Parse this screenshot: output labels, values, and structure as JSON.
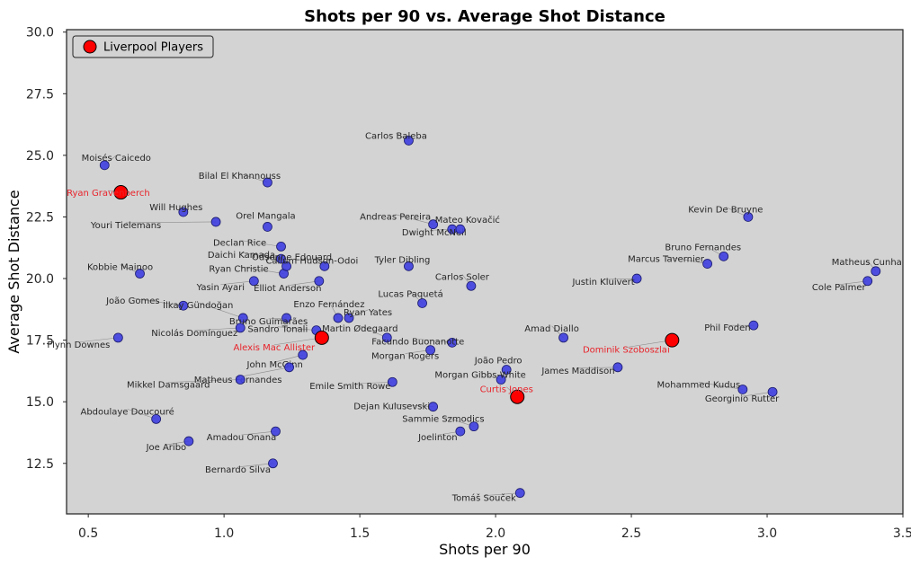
{
  "chart_data": {
    "type": "scatter",
    "title": "Shots per 90 vs. Average Shot Distance",
    "xlabel": "Shots per 90",
    "ylabel": "Average Shot Distance",
    "xlim": [
      0.42,
      3.5
    ],
    "ylim": [
      10.45,
      30.1
    ],
    "x_ticks": [
      "0.5",
      "1.0",
      "1.5",
      "2.0",
      "2.5",
      "3.0",
      "3.5"
    ],
    "y_ticks": [
      "12.5",
      "15.0",
      "17.5",
      "20.0",
      "22.5",
      "25.0",
      "27.5",
      "30.0"
    ],
    "grid": false,
    "legend": {
      "location": "top-left",
      "entries": [
        "Liverpool Players"
      ]
    },
    "colors": {
      "plot_bg": "#d3d3d3",
      "point": "#3a3ae0",
      "liverpool": "#ff0000",
      "liverpool_label": "#e8232a",
      "leader": "#8c8c8c"
    },
    "series": [
      {
        "name": "Other players",
        "points": [
          {
            "x": 0.56,
            "y": 29.2,
            "label": ""
          },
          {
            "x": 0.56,
            "y": 24.6,
            "label": "Moisés Caicedo"
          },
          {
            "x": 0.85,
            "y": 22.7,
            "label": "Will Hughes"
          },
          {
            "x": 0.97,
            "y": 22.3,
            "label": "Youri Tielemans"
          },
          {
            "x": 1.16,
            "y": 23.9,
            "label": "Bilal El Khannouss"
          },
          {
            "x": 1.16,
            "y": 22.1,
            "label": "Orel Mangala"
          },
          {
            "x": 1.21,
            "y": 21.3,
            "label": "Declan Rice"
          },
          {
            "x": 1.21,
            "y": 20.8,
            "label": "Daichi Kamada"
          },
          {
            "x": 1.22,
            "y": 20.2,
            "label": "Ryan Christie"
          },
          {
            "x": 1.23,
            "y": 20.5,
            "label": "Odsonne Edouard"
          },
          {
            "x": 1.37,
            "y": 20.5,
            "label": "Callum Hudson-Odoi"
          },
          {
            "x": 1.11,
            "y": 19.9,
            "label": "Yasin Ayari"
          },
          {
            "x": 1.35,
            "y": 19.9,
            "label": "Elliot Anderson"
          },
          {
            "x": 0.69,
            "y": 20.2,
            "label": "Kobbie Mainoo"
          },
          {
            "x": 0.85,
            "y": 18.9,
            "label": "João Gomes"
          },
          {
            "x": 1.07,
            "y": 18.4,
            "label": "İlkay Gündoğan"
          },
          {
            "x": 1.23,
            "y": 18.4,
            "label": "Bruno Guimarães"
          },
          {
            "x": 1.06,
            "y": 18.0,
            "label": "Nicolás Domínguez"
          },
          {
            "x": 1.34,
            "y": 17.9,
            "label": "Sandro Tonali"
          },
          {
            "x": 0.61,
            "y": 17.6,
            "label": "Flynn Downes"
          },
          {
            "x": 1.42,
            "y": 18.4,
            "label": "Enzo Fernández"
          },
          {
            "x": 1.46,
            "y": 18.4,
            "label": "Ryan Yates"
          },
          {
            "x": 1.6,
            "y": 17.6,
            "label": "Martin Ødegaard"
          },
          {
            "x": 1.29,
            "y": 16.9,
            "label": "John McGinn"
          },
          {
            "x": 1.24,
            "y": 16.4,
            "label": "Matheus Fernandes"
          },
          {
            "x": 1.06,
            "y": 15.9,
            "label": "Mikkel Damsgaard"
          },
          {
            "x": 1.68,
            "y": 25.6,
            "label": "Carlos Baleba"
          },
          {
            "x": 1.77,
            "y": 22.2,
            "label": "Andreas Pereira"
          },
          {
            "x": 1.84,
            "y": 22.0,
            "label": "Dwight McNeil"
          },
          {
            "x": 1.87,
            "y": 22.0,
            "label": "Mateo Kovačić"
          },
          {
            "x": 1.68,
            "y": 20.5,
            "label": "Tyler Dibling"
          },
          {
            "x": 1.91,
            "y": 19.7,
            "label": "Carlos Soler"
          },
          {
            "x": 1.73,
            "y": 19.0,
            "label": "Lucas Paquetá"
          },
          {
            "x": 1.84,
            "y": 17.4,
            "label": "Facundo Buonanotte"
          },
          {
            "x": 1.76,
            "y": 17.1,
            "label": "Morgan Rogers"
          },
          {
            "x": 2.04,
            "y": 16.3,
            "label": "João Pedro"
          },
          {
            "x": 2.02,
            "y": 15.9,
            "label": "Morgan Gibbs-White"
          },
          {
            "x": 1.62,
            "y": 15.8,
            "label": "Emile Smith Rowe"
          },
          {
            "x": 1.77,
            "y": 14.8,
            "label": "Dejan Kulusevski"
          },
          {
            "x": 1.92,
            "y": 14.0,
            "label": "Sammie Szmodics"
          },
          {
            "x": 1.87,
            "y": 13.8,
            "label": "Joelinton"
          },
          {
            "x": 2.09,
            "y": 11.3,
            "label": "Tomáš Souček"
          },
          {
            "x": 2.25,
            "y": 17.6,
            "label": "Amad Diallo"
          },
          {
            "x": 2.45,
            "y": 16.4,
            "label": "James Maddison"
          },
          {
            "x": 2.52,
            "y": 20.0,
            "label": "Justin Kluivert"
          },
          {
            "x": 2.78,
            "y": 20.6,
            "label": "Marcus Tavernier"
          },
          {
            "x": 2.84,
            "y": 20.9,
            "label": "Bruno Fernandes"
          },
          {
            "x": 2.93,
            "y": 22.5,
            "label": "Kevin De Bruyne"
          },
          {
            "x": 2.95,
            "y": 18.1,
            "label": "Phil Foden"
          },
          {
            "x": 2.91,
            "y": 15.5,
            "label": "Mohammed Kudus"
          },
          {
            "x": 3.02,
            "y": 15.4,
            "label": "Georginio Rutter"
          },
          {
            "x": 3.4,
            "y": 20.3,
            "label": "Matheus Cunha"
          },
          {
            "x": 3.37,
            "y": 19.9,
            "label": "Cole Palmer"
          },
          {
            "x": 0.75,
            "y": 14.3,
            "label": "Abdoulaye Doucouré"
          },
          {
            "x": 0.87,
            "y": 13.4,
            "label": "Joe Aribo"
          },
          {
            "x": 1.19,
            "y": 13.8,
            "label": "Amadou Onana"
          },
          {
            "x": 1.18,
            "y": 12.5,
            "label": "Bernardo Silva"
          }
        ]
      },
      {
        "name": "Liverpool Players",
        "points": [
          {
            "x": 0.62,
            "y": 23.5,
            "label": "Ryan Gravenberch"
          },
          {
            "x": 1.36,
            "y": 17.6,
            "label": "Alexis Mac Allister"
          },
          {
            "x": 2.08,
            "y": 15.2,
            "label": "Curtis Jones"
          },
          {
            "x": 2.65,
            "y": 17.5,
            "label": "Dominik Szoboszlai"
          }
        ]
      }
    ]
  }
}
